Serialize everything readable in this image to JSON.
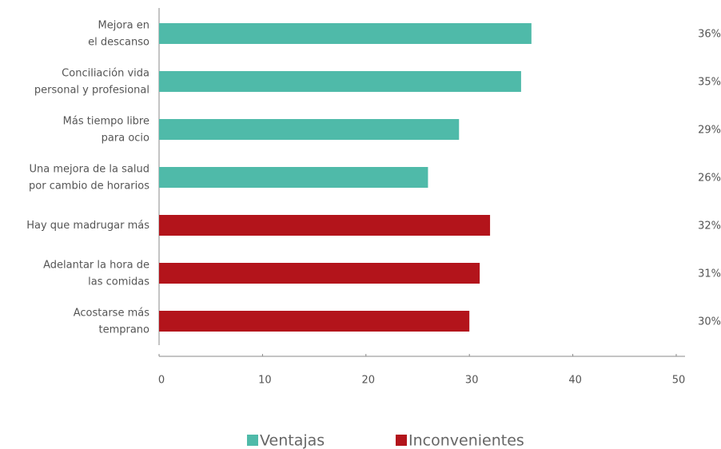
{
  "chart_data": {
    "type": "bar",
    "orientation": "horizontal",
    "categories": [
      "Mejora en\nel descanso",
      "Conciliación vida\npersonal y profesional",
      "Más tiempo libre\npara ocio",
      "Una mejora de la salud\npor cambio de horarios",
      "Hay que madrugar más",
      "Adelantar la hora  de\nlas comidas",
      "Acostarse más\ntemprano"
    ],
    "series": [
      {
        "name": "Ventajas",
        "color": "#4fbaa9",
        "values": [
          36,
          35,
          29,
          26,
          null,
          null,
          null
        ],
        "value_labels": [
          "36%",
          "35%",
          "29%",
          "26%",
          null,
          null,
          null
        ]
      },
      {
        "name": "Inconvenientes",
        "color": "#b3141b",
        "values": [
          null,
          null,
          null,
          null,
          32,
          31,
          30
        ],
        "value_labels": [
          null,
          null,
          null,
          null,
          "32%",
          "31%",
          "30%"
        ]
      }
    ],
    "xlim": [
      0,
      50
    ],
    "xticks": [
      0,
      10,
      20,
      30,
      40,
      50
    ]
  }
}
